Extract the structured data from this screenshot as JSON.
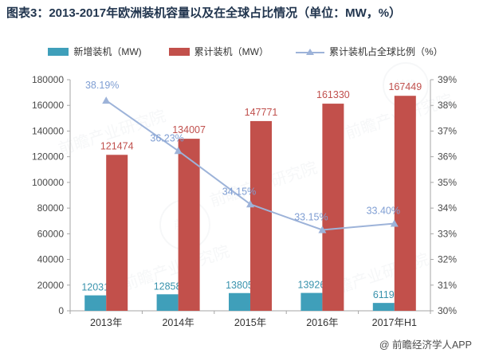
{
  "header": {
    "title": "图表3：2013-2017年欧洲装机容量以及在全球占比情况（单位：MW，%）"
  },
  "legend": [
    {
      "label": "新增装机（MW)",
      "type": "bar",
      "color": "#3f9fba"
    },
    {
      "label": "累计装机（MW）",
      "type": "bar",
      "color": "#c2504b"
    },
    {
      "label": "累计装机占全球比例（%）",
      "type": "line",
      "color": "#9db3d9"
    }
  ],
  "chart_data": {
    "type": "bar+line",
    "categories": [
      "2013年",
      "2014年",
      "2015年",
      "2016年",
      "2017年H1"
    ],
    "series": [
      {
        "name": "新增装机（MW)",
        "type": "bar",
        "axis": "left",
        "color": "#3f9fba",
        "label_color": "#3a93ad",
        "values": [
          12031,
          12858,
          13805,
          13926,
          6119
        ]
      },
      {
        "name": "累计装机（MW）",
        "type": "bar",
        "axis": "left",
        "color": "#c2504b",
        "label_color": "#c0504d",
        "values": [
          121474,
          134007,
          147771,
          161330,
          167449
        ]
      },
      {
        "name": "累计装机占全球比例（%）",
        "type": "line",
        "axis": "right",
        "color": "#9db3d9",
        "label_color": "#7f9ed3",
        "values": [
          38.19,
          36.23,
          34.15,
          33.15,
          33.4
        ],
        "point_labels": [
          "38.19%",
          "36.23%",
          "34.15%",
          "33.15%",
          "33.40%"
        ]
      }
    ],
    "left_axis": {
      "min": 0,
      "max": 180000,
      "step": 20000
    },
    "right_axis": {
      "min": 30,
      "max": 39,
      "step": 1,
      "suffix": "%"
    },
    "grid": false,
    "legend_position": "top",
    "title": "图表3：2013-2017年欧洲装机容量以及在全球占比情况（单位：MW，%）"
  },
  "footer": {
    "credit": "@ 前瞻经济学人APP"
  },
  "watermark": {
    "text": "前瞻产业研究院",
    "logo_text": "前瞻"
  }
}
